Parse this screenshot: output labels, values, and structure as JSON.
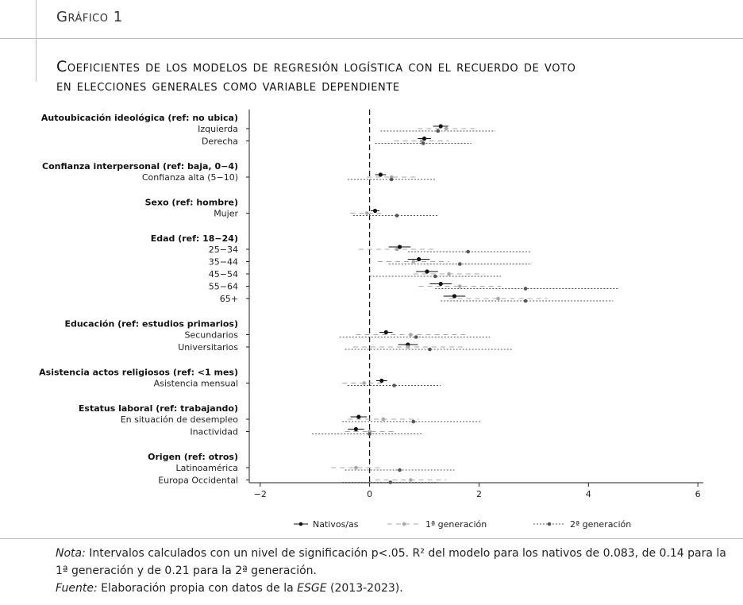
{
  "header": {
    "figure_label": "Gráfico 1",
    "title_line1": "Coeficientes de los modelos de regresión logística con el recuerdo de voto",
    "title_line2": "en elecciones generales como variable dependiente"
  },
  "chart_data": {
    "type": "coefficient-plot",
    "orientation": "horizontal",
    "xlim": [
      -2.2,
      6.1
    ],
    "xticks": [
      -2,
      0,
      2,
      4,
      6
    ],
    "xtick_labels": [
      "−2",
      "0",
      "2",
      "4",
      "6"
    ],
    "reference_line": 0,
    "legend": {
      "placement": "bottom",
      "entries": [
        {
          "key": "nativos",
          "label": "Nativos/as"
        },
        {
          "key": "gen1",
          "label": "1ª generación"
        },
        {
          "key": "gen2",
          "label": "2ª generación"
        }
      ]
    },
    "series_styles": {
      "nativos": {
        "color": "#111111",
        "line": "solid"
      },
      "gen1": {
        "color": "#a8a8a8",
        "line": "dashed"
      },
      "gen2": {
        "color": "#555555",
        "line": "dotted"
      }
    },
    "groups": [
      {
        "header": "Autoubicación ideológica (ref: no ubica)",
        "items": [
          {
            "label": "Izquierda",
            "nativos": {
              "est": 1.3,
              "lo": 1.16,
              "hi": 1.44
            },
            "gen1": {
              "est": 1.4,
              "lo": 0.88,
              "hi": 1.92
            },
            "gen2": {
              "est": 1.25,
              "lo": 0.2,
              "hi": 2.3
            }
          },
          {
            "label": "Derecha",
            "nativos": {
              "est": 1.0,
              "lo": 0.88,
              "hi": 1.12
            },
            "gen1": {
              "est": 0.95,
              "lo": 0.45,
              "hi": 1.45
            },
            "gen2": {
              "est": 0.98,
              "lo": 0.1,
              "hi": 1.86
            }
          }
        ]
      },
      {
        "header": "Confianza interpersonal (ref: baja, 0−4)",
        "items": [
          {
            "label": "Confianza alta (5−10)",
            "nativos": {
              "est": 0.2,
              "lo": 0.1,
              "hi": 0.3
            },
            "gen1": {
              "est": 0.4,
              "lo": -0.05,
              "hi": 0.85
            },
            "gen2": {
              "est": 0.4,
              "lo": -0.4,
              "hi": 1.2
            }
          }
        ]
      },
      {
        "header": "Sexo (ref: hombre)",
        "items": [
          {
            "label": "Mujer",
            "nativos": {
              "est": 0.1,
              "lo": 0.02,
              "hi": 0.18
            },
            "gen1": {
              "est": -0.05,
              "lo": -0.35,
              "hi": 0.25
            },
            "gen2": {
              "est": 0.5,
              "lo": -0.3,
              "hi": 1.25
            }
          }
        ]
      },
      {
        "header": "Edad (ref: 18−24)",
        "items": [
          {
            "label": "25−34",
            "nativos": {
              "est": 0.55,
              "lo": 0.35,
              "hi": 0.75
            },
            "gen1": {
              "est": 0.5,
              "lo": -0.2,
              "hi": 1.2
            },
            "gen2": {
              "est": 1.8,
              "lo": 0.7,
              "hi": 2.95
            }
          },
          {
            "label": "35−44",
            "nativos": {
              "est": 0.9,
              "lo": 0.7,
              "hi": 1.1
            },
            "gen1": {
              "est": 0.8,
              "lo": 0.15,
              "hi": 1.45
            },
            "gen2": {
              "est": 1.65,
              "lo": 0.35,
              "hi": 2.95
            }
          },
          {
            "label": "45−54",
            "nativos": {
              "est": 1.05,
              "lo": 0.85,
              "hi": 1.25
            },
            "gen1": {
              "est": 1.45,
              "lo": 0.8,
              "hi": 2.1
            },
            "gen2": {
              "est": 1.2,
              "lo": 0.0,
              "hi": 2.4
            }
          },
          {
            "label": "55−64",
            "nativos": {
              "est": 1.3,
              "lo": 1.1,
              "hi": 1.5
            },
            "gen1": {
              "est": 1.65,
              "lo": 0.9,
              "hi": 2.4
            },
            "gen2": {
              "est": 2.85,
              "lo": 1.2,
              "hi": 4.55
            }
          },
          {
            "label": "65+",
            "nativos": {
              "est": 1.55,
              "lo": 1.35,
              "hi": 1.75
            },
            "gen1": {
              "est": 2.35,
              "lo": 1.45,
              "hi": 3.25
            },
            "gen2": {
              "est": 2.85,
              "lo": 1.3,
              "hi": 4.45
            }
          }
        ]
      },
      {
        "header": "Educación (ref: estudios primarios)",
        "items": [
          {
            "label": "Secundarios",
            "nativos": {
              "est": 0.3,
              "lo": 0.18,
              "hi": 0.42
            },
            "gen1": {
              "est": 0.75,
              "lo": -0.25,
              "hi": 1.75
            },
            "gen2": {
              "est": 0.85,
              "lo": -0.55,
              "hi": 2.2
            }
          },
          {
            "label": "Universitarios",
            "nativos": {
              "est": 0.7,
              "lo": 0.52,
              "hi": 0.88
            },
            "gen1": {
              "est": 0.7,
              "lo": -0.3,
              "hi": 1.7
            },
            "gen2": {
              "est": 1.1,
              "lo": -0.45,
              "hi": 2.6
            }
          }
        ]
      },
      {
        "header": "Asistencia actos religiosos (ref: <1 mes)",
        "items": [
          {
            "label": "Asistencia mensual",
            "nativos": {
              "est": 0.22,
              "lo": 0.12,
              "hi": 0.32
            },
            "gen1": {
              "est": -0.1,
              "lo": -0.5,
              "hi": 0.3
            },
            "gen2": {
              "est": 0.45,
              "lo": -0.4,
              "hi": 1.3
            }
          }
        ]
      },
      {
        "header": "Estatus laboral (ref: trabajando)",
        "items": [
          {
            "label": "En situación de desempleo",
            "nativos": {
              "est": -0.2,
              "lo": -0.35,
              "hi": -0.05
            },
            "gen1": {
              "est": 0.25,
              "lo": -0.4,
              "hi": 0.9
            },
            "gen2": {
              "est": 0.8,
              "lo": -0.5,
              "hi": 2.05
            }
          },
          {
            "label": "Inactividad",
            "nativos": {
              "est": -0.25,
              "lo": -0.4,
              "hi": -0.1
            },
            "gen1": {
              "est": 0.0,
              "lo": -0.45,
              "hi": 0.45
            },
            "gen2": {
              "est": 0.0,
              "lo": -1.05,
              "hi": 0.95
            }
          }
        ]
      },
      {
        "header": "Origen (ref: otros)",
        "items": [
          {
            "label": "Latinoamérica",
            "nativos": null,
            "gen1": {
              "est": -0.25,
              "lo": -0.7,
              "hi": 0.2
            },
            "gen2": {
              "est": 0.55,
              "lo": -0.45,
              "hi": 1.55
            }
          },
          {
            "label": "Europa Occidental",
            "nativos": null,
            "gen1": {
              "est": 0.75,
              "lo": 0.1,
              "hi": 1.4
            },
            "gen2": {
              "est": 0.38,
              "lo": -0.5,
              "hi": 1.25
            }
          }
        ]
      }
    ]
  },
  "notes": {
    "nota_label": "Nota:",
    "nota_text": " Intervalos calculados con un nivel de significación p<.05. R² del modelo para los nativos de 0.083, de 0.14 para la 1ª generación y de 0.21 para la 2ª generación.",
    "fuente_label": "Fuente:",
    "fuente_text": " Elaboración propia con datos de la ",
    "fuente_source": "ESGE",
    "fuente_years": " (2013-2023)."
  }
}
